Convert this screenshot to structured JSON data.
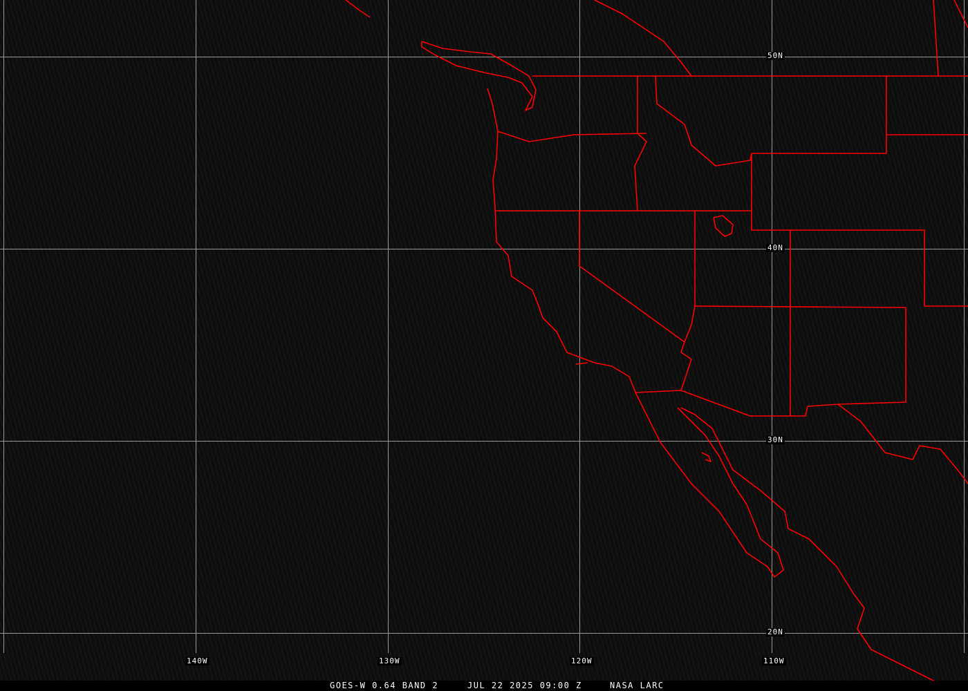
{
  "map": {
    "latitude_labels": [
      "50N",
      "40N",
      "30N",
      "20N"
    ],
    "longitude_labels": [
      "140W",
      "130W",
      "120W",
      "110W"
    ],
    "colors": {
      "background": "#000000",
      "borders": "#ff0000",
      "grid": "#9a9a9a",
      "text": "#ffffff"
    }
  },
  "caption": {
    "satellite": "GOES-W 0.64 BAND 2",
    "datetime": "JUL 22 2025 09:00 Z",
    "source": "NASA LARC"
  }
}
